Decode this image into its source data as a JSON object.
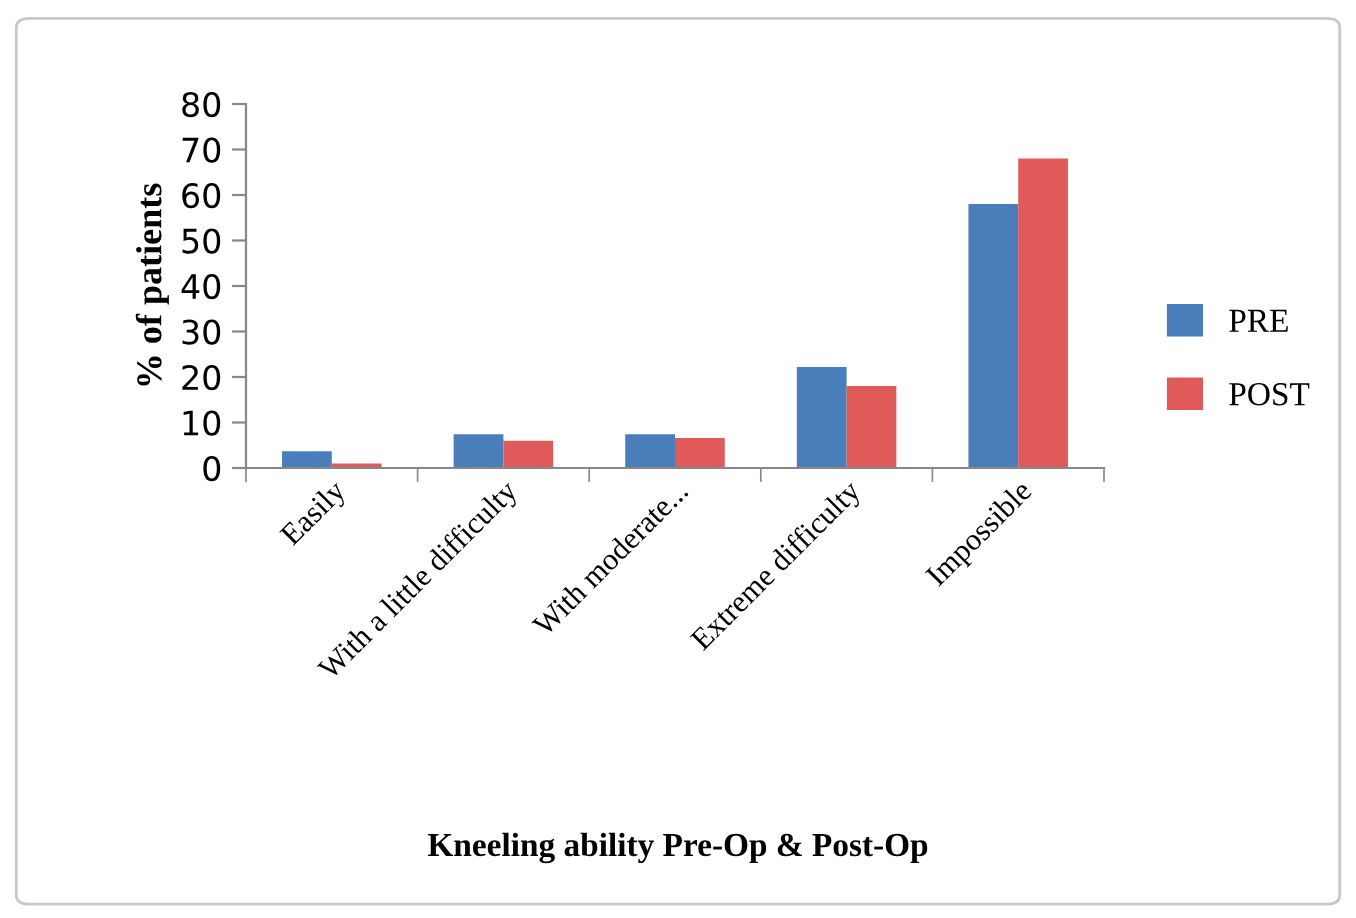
{
  "chart_data": {
    "type": "bar",
    "xlabel": "Kneeling ability Pre-Op & Post-Op",
    "ylabel": "% of patients",
    "categories": [
      "Easily",
      "With a little difficulty",
      "With moderate...",
      "Extreme difficulty",
      "Impossible"
    ],
    "series": [
      {
        "name": "PRE",
        "color": "#4a7ebb",
        "values": [
          3.7,
          7.4,
          7.4,
          22.2,
          58
        ]
      },
      {
        "name": "POST",
        "color": "#e05a5a",
        "values": [
          1,
          6,
          6.6,
          18,
          68
        ]
      }
    ],
    "ylim": [
      0,
      80
    ],
    "yticks": [
      0,
      10,
      20,
      30,
      40,
      50,
      60,
      70,
      80
    ],
    "grid": false,
    "legend": "right"
  }
}
